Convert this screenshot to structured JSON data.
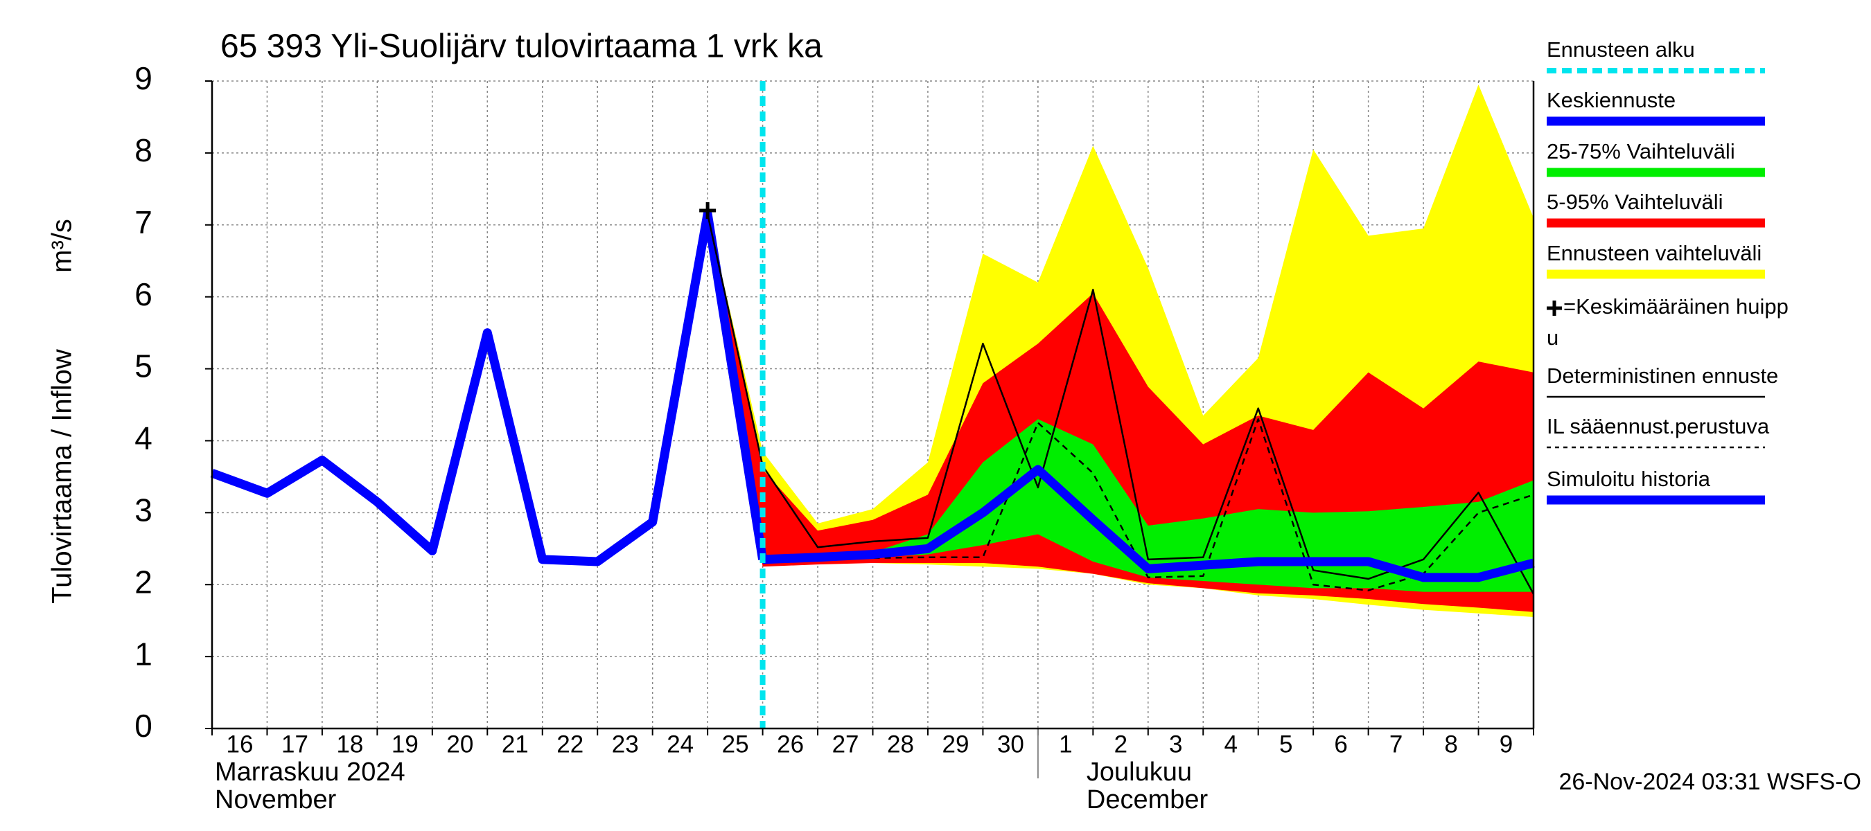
{
  "chart_data": {
    "type": "line",
    "title": "65 393 Yli-Suolijärv tulovirtaama 1 vrk ka",
    "y_label": [
      "Tulovirtaama / Inflow",
      "m³/s"
    ],
    "categories": [
      "16",
      "17",
      "18",
      "19",
      "20",
      "21",
      "22",
      "23",
      "24",
      "25",
      "26",
      "27",
      "28",
      "29",
      "30",
      "1",
      "2",
      "3",
      "4",
      "5",
      "6",
      "7",
      "8",
      "9",
      null
    ],
    "month_labels": [
      {
        "at": "16",
        "lines": [
          "Marraskuu 2024",
          "November"
        ]
      },
      {
        "at": "1",
        "lines": [
          "Joulukuu",
          "December"
        ]
      }
    ],
    "timestamp": "26-Nov-2024 03:31 WSFS-O",
    "ylim": [
      0,
      9
    ],
    "yticks": [
      0,
      1,
      2,
      3,
      4,
      5,
      6,
      7,
      8,
      9
    ],
    "grid": true,
    "series": [
      {
        "name": "Ennusteen alku",
        "kind": "marker_line",
        "color": "#00e5ee",
        "at": "26"
      },
      {
        "name": "Keskiennuste",
        "kind": "line",
        "color": "#0000ff",
        "width": "thick",
        "values": [
          null,
          null,
          null,
          null,
          null,
          null,
          null,
          null,
          null,
          null,
          2.35,
          2.38,
          2.42,
          2.5,
          3.0,
          3.6,
          2.9,
          2.22,
          2.27,
          2.32,
          2.32,
          2.32,
          2.1,
          2.1,
          2.3
        ]
      },
      {
        "name": "25-75% Vaihteluväli",
        "kind": "band",
        "color": "#00ee00",
        "upper": [
          null,
          null,
          null,
          null,
          null,
          null,
          null,
          null,
          null,
          null,
          2.35,
          2.38,
          2.45,
          2.7,
          3.7,
          4.3,
          3.95,
          2.82,
          2.92,
          3.05,
          3.0,
          3.02,
          3.08,
          3.15,
          3.45
        ],
        "lower": [
          null,
          null,
          null,
          null,
          null,
          null,
          null,
          null,
          null,
          null,
          2.3,
          2.33,
          2.38,
          2.42,
          2.55,
          2.7,
          2.32,
          2.1,
          2.05,
          2.0,
          1.95,
          1.95,
          1.9,
          1.9,
          1.9
        ]
      },
      {
        "name": "5-95% Vaihteluväli",
        "kind": "band",
        "color": "#ff0000",
        "upper": [
          null,
          null,
          null,
          null,
          null,
          null,
          null,
          null,
          null,
          7.15,
          3.6,
          2.75,
          2.9,
          3.25,
          4.8,
          5.35,
          6.05,
          4.75,
          3.95,
          4.35,
          4.15,
          4.95,
          4.45,
          5.1,
          4.95
        ],
        "lower": [
          null,
          null,
          null,
          null,
          null,
          null,
          null,
          null,
          null,
          7.15,
          2.25,
          2.28,
          2.3,
          2.3,
          2.3,
          2.25,
          2.15,
          2.02,
          1.95,
          1.88,
          1.85,
          1.8,
          1.73,
          1.68,
          1.62
        ]
      },
      {
        "name": "Ennusteen vaihteluväli",
        "kind": "band",
        "color": "#ffff00",
        "upper": [
          null,
          null,
          null,
          null,
          null,
          null,
          null,
          null,
          null,
          7.15,
          3.85,
          2.85,
          3.05,
          3.7,
          6.6,
          6.2,
          8.1,
          6.4,
          4.35,
          5.15,
          8.05,
          6.85,
          6.95,
          8.95,
          7.1
        ],
        "lower": [
          null,
          null,
          null,
          null,
          null,
          null,
          null,
          null,
          null,
          7.15,
          2.3,
          2.3,
          2.3,
          2.28,
          2.25,
          2.22,
          2.15,
          2.0,
          1.95,
          1.85,
          1.8,
          1.72,
          1.65,
          1.6,
          1.55
        ]
      },
      {
        "name": [
          "=Keskimääräinen huipp",
          "u"
        ],
        "kind": "peak",
        "color": "#000000",
        "at": "25",
        "value": 7.2
      },
      {
        "name": "Deterministinen ennuste",
        "kind": "line",
        "color": "#000000",
        "width": "thin",
        "values": [
          null,
          null,
          null,
          null,
          null,
          null,
          null,
          null,
          null,
          7.15,
          3.65,
          2.52,
          2.6,
          2.65,
          5.35,
          3.35,
          6.1,
          2.35,
          2.38,
          4.45,
          2.2,
          2.08,
          2.35,
          3.28,
          1.87
        ]
      },
      {
        "name": "IL sääennust.perustuva",
        "kind": "line",
        "color": "#000000",
        "width": "thin",
        "dashed": true,
        "values": [
          null,
          null,
          null,
          null,
          null,
          null,
          null,
          null,
          null,
          null,
          2.35,
          2.35,
          2.37,
          2.38,
          2.38,
          4.25,
          3.55,
          2.1,
          2.12,
          4.3,
          2.0,
          1.92,
          2.15,
          3.0,
          3.25
        ]
      },
      {
        "name": "Simuloitu historia",
        "kind": "line",
        "color": "#0000ff",
        "width": "thick",
        "values": [
          3.55,
          3.27,
          3.73,
          3.15,
          2.47,
          5.5,
          2.35,
          2.32,
          2.87,
          7.15,
          2.35,
          null,
          null,
          null,
          null,
          null,
          null,
          null,
          null,
          null,
          null,
          null,
          null,
          null,
          null
        ]
      }
    ]
  }
}
